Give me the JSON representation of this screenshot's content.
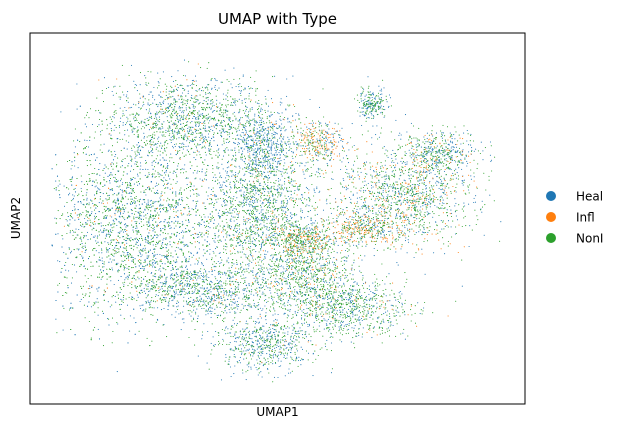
{
  "chart_data": {
    "type": "scatter",
    "title": "UMAP with Type",
    "xlabel": "UMAP1",
    "ylabel": "UMAP2",
    "x_ticks": [],
    "y_ticks": [],
    "grid": false,
    "legend_position": "right",
    "series": [
      {
        "name": "Heal",
        "color": "#1f77b4"
      },
      {
        "name": "Infl",
        "color": "#ff7f0e"
      },
      {
        "name": "NonI",
        "color": "#2ca02c"
      }
    ],
    "clusters": [
      {
        "center": [
          0.3,
          0.8
        ],
        "spread": [
          0.17,
          0.12
        ],
        "mix": [
          0.45,
          0.03,
          0.52
        ]
      },
      {
        "center": [
          0.18,
          0.47
        ],
        "spread": [
          0.19,
          0.24
        ],
        "mix": [
          0.45,
          0.03,
          0.52
        ]
      },
      {
        "center": [
          0.46,
          0.52
        ],
        "spread": [
          0.12,
          0.2
        ],
        "mix": [
          0.4,
          0.04,
          0.56
        ]
      },
      {
        "center": [
          0.34,
          0.28
        ],
        "spread": [
          0.14,
          0.08
        ],
        "mix": [
          0.55,
          0.02,
          0.43
        ]
      },
      {
        "center": [
          0.56,
          0.34
        ],
        "spread": [
          0.09,
          0.12
        ],
        "mix": [
          0.3,
          0.1,
          0.6
        ]
      },
      {
        "center": [
          0.66,
          0.23
        ],
        "spread": [
          0.12,
          0.09
        ],
        "mix": [
          0.35,
          0.04,
          0.61
        ]
      },
      {
        "center": [
          0.47,
          0.12
        ],
        "spread": [
          0.1,
          0.08
        ],
        "mix": [
          0.55,
          0.02,
          0.43
        ]
      },
      {
        "center": [
          0.47,
          0.72
        ],
        "spread": [
          0.05,
          0.11
        ],
        "mix": [
          0.72,
          0.05,
          0.23
        ]
      },
      {
        "center": [
          0.56,
          0.44
        ],
        "spread": [
          0.07,
          0.04
        ],
        "mix": [
          0.2,
          0.45,
          0.35
        ]
      },
      {
        "center": [
          0.59,
          0.73
        ],
        "spread": [
          0.05,
          0.06
        ],
        "mix": [
          0.3,
          0.4,
          0.3
        ]
      },
      {
        "center": [
          0.71,
          0.85
        ],
        "spread": [
          0.03,
          0.04
        ],
        "mix": [
          0.5,
          0.0,
          0.5
        ]
      },
      {
        "center": [
          0.78,
          0.57
        ],
        "spread": [
          0.14,
          0.14
        ],
        "mix": [
          0.35,
          0.15,
          0.5
        ]
      },
      {
        "center": [
          0.86,
          0.7
        ],
        "spread": [
          0.07,
          0.06
        ],
        "mix": [
          0.45,
          0.15,
          0.4
        ]
      },
      {
        "center": [
          0.69,
          0.47
        ],
        "spread": [
          0.07,
          0.05
        ],
        "mix": [
          0.25,
          0.4,
          0.35
        ]
      }
    ]
  }
}
